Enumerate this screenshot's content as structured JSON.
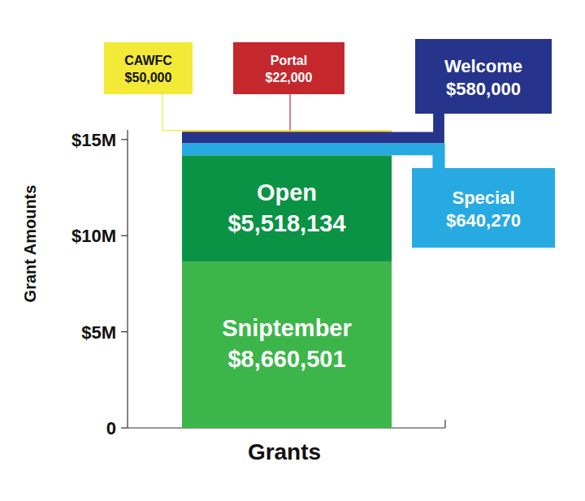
{
  "chart_data": {
    "type": "bar",
    "stacked": true,
    "data_labels": true,
    "x_label": "Grants",
    "y_label": "Grant Amounts",
    "categories": [
      null
    ],
    "series": [
      {
        "name": "Sniptember",
        "color": "#3cb64a",
        "values": [
          8660501
        ],
        "value_labels": [
          "$8,660,501"
        ]
      },
      {
        "name": "Open",
        "color": "#0a9345",
        "values": [
          5518134
        ],
        "value_labels": [
          "$5,518,134"
        ]
      },
      {
        "name": "Special",
        "color": "#27aae1",
        "values": [
          640270
        ],
        "value_labels": [
          "$640,270"
        ]
      },
      {
        "name": "Welcome",
        "color": "#27348b",
        "values": [
          580000
        ],
        "value_labels": [
          "$580,000"
        ]
      },
      {
        "name": "Portal",
        "color": "#c4282d",
        "values": [
          22000
        ],
        "value_labels": [
          "$22,000"
        ]
      },
      {
        "name": "CAWFC",
        "color": "#f2ea37",
        "values": [
          50000
        ],
        "value_labels": [
          "$50,000"
        ]
      }
    ],
    "ylim": [
      0,
      15500000
    ],
    "yticks": [
      0,
      {
        "value": 5000000,
        "label": "$5M"
      },
      {
        "value": 10000000,
        "label": "$10M"
      },
      {
        "value": 15000000,
        "label": "$15M"
      }
    ]
  }
}
